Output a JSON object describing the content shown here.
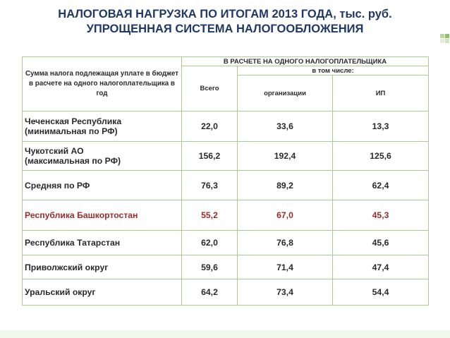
{
  "slide": {
    "title_line1": "НАЛОГОВАЯ НАГРУЗКА ПО ИТОГАМ 2013 ГОДА, тыс. руб.",
    "title_line2": "УПРОЩЕННАЯ СИСТЕМА НАЛОГООБЛОЖЕНИЯ"
  },
  "table": {
    "header": {
      "description": "Сумма налога подлежащая уплате в бюджет в расчете на одного налогоплательщика в год",
      "group": "В РАСЧЕТЕ НА ОДНОГО НАЛОГОПЛАТЕЛЬЩИКА",
      "total": "Всего",
      "including": "в том числе:",
      "organizations": "организации",
      "ip": "ИП"
    },
    "rows": [
      {
        "line1": "Чеченская Республика",
        "line2": "(минимальная по РФ)",
        "total": "22,0",
        "org": "33,6",
        "ip": "13,3"
      },
      {
        "line1": "Чукотский АО",
        "line2": "(максимальная по РФ)",
        "total": "156,2",
        "org": "192,4",
        "ip": "125,6"
      },
      {
        "line1": "Средняя по РФ",
        "total": "76,3",
        "org": "89,2",
        "ip": "62,4"
      },
      {
        "line1": "Республика Башкортостан",
        "total": "55,2",
        "org": "67,0",
        "ip": "45,3",
        "highlight_color": "#9c2b2b"
      },
      {
        "line1": "Республика Татарстан",
        "total": "62,0",
        "org": "76,8",
        "ip": "45,6"
      },
      {
        "line1": "Приволжский округ",
        "total": "59,6",
        "org": "71,4",
        "ip": "47,4"
      },
      {
        "line1": "Уральский округ",
        "total": "64,2",
        "org": "73,4",
        "ip": "54,4"
      }
    ]
  },
  "colors": {
    "title": "#1f3864",
    "border": "#a9cf8f",
    "highlight": "#9c2b2b"
  }
}
